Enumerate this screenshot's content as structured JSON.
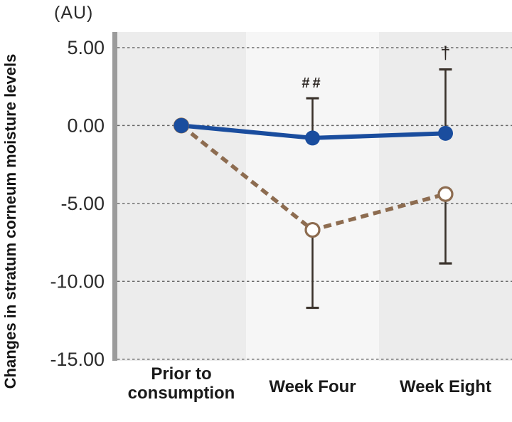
{
  "figure": {
    "unit_label": "(AU)",
    "y_axis_title": "Changes in stratum corneum moisture levels"
  },
  "chart_data": {
    "type": "line",
    "title": "",
    "xlabel": "",
    "ylabel": "Changes in stratum corneum moisture levels",
    "unit": "(AU)",
    "categories": [
      "Prior to\nconsumption",
      "Week Four",
      "Week Eight"
    ],
    "yticks": [
      5,
      0,
      -5,
      -10,
      -15
    ],
    "ytick_labels": [
      "5.00",
      "0.00",
      "-5.00",
      "-10.00",
      "-15.00"
    ],
    "ylim": [
      -15.1,
      6.0
    ],
    "grid": "horizontal-dashed",
    "legend_position": "none",
    "background_bands": [
      "#ececec",
      "#f6f6f6",
      "#ececec"
    ],
    "colors": {
      "band_dark": "#ececec",
      "band_light": "#f6f6f6",
      "axis_bar": "#9b9b9b",
      "gridline": "#666666",
      "tick_text": "#2b2b2b",
      "category_text": "#1a1a1a",
      "error_bar": "#3a322b",
      "annotation_text": "#2a2420",
      "series_blue": "#1a4d9e",
      "series_brown": "#8d6c50"
    },
    "series": [
      {
        "name": "solid-blue-filled-circles",
        "color": "#1a4d9e",
        "line_style": "solid",
        "marker": "filled-circle",
        "values": [
          0.0,
          -0.8,
          -0.5
        ],
        "error_up": [
          null,
          2.55,
          4.1
        ],
        "error_down": [
          null,
          null,
          null
        ]
      },
      {
        "name": "dashed-brown-open-circles",
        "color": "#8d6c50",
        "line_style": "dashed",
        "marker": "open-circle",
        "values": [
          0.0,
          -6.7,
          -4.4
        ],
        "error_up": [
          null,
          null,
          null
        ],
        "error_down": [
          null,
          5.0,
          4.45
        ]
      }
    ],
    "annotations": [
      {
        "text": "##",
        "category_index": 1,
        "series_index": 0
      },
      {
        "text": "†",
        "category_index": 2,
        "series_index": 0
      }
    ]
  }
}
